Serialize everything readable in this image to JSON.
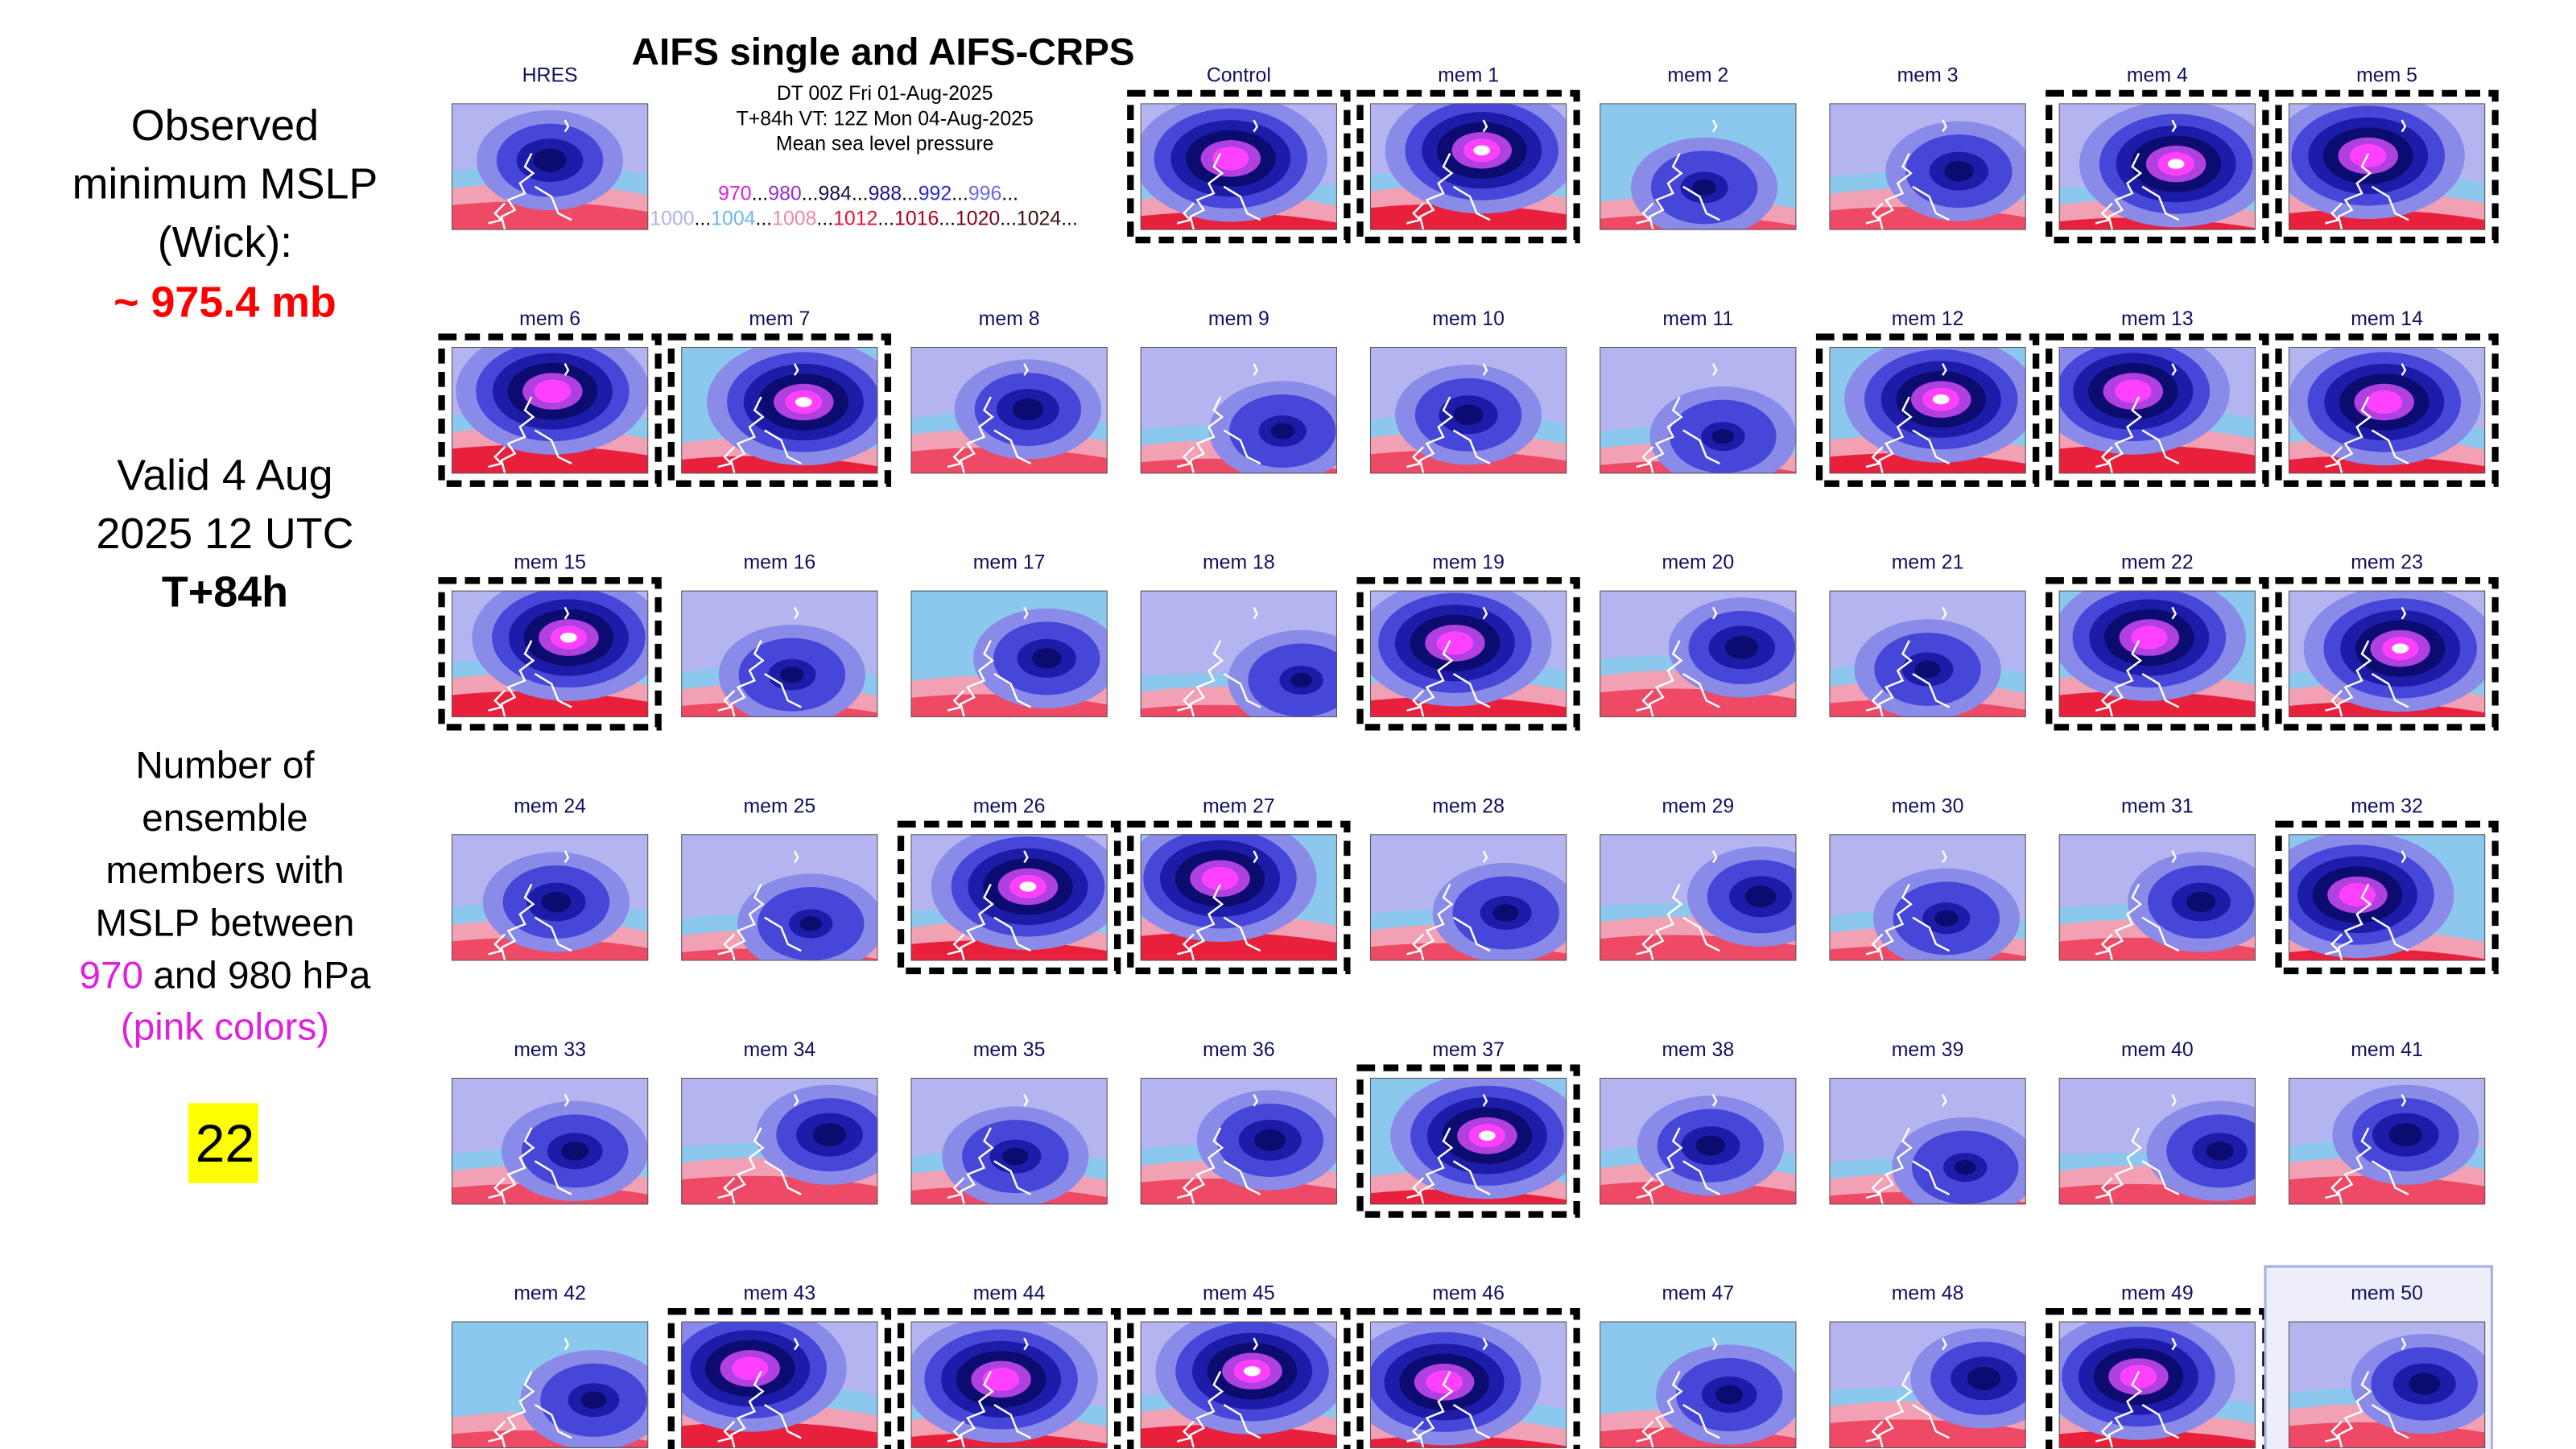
{
  "sidebar": {
    "observed_lines": [
      "Observed",
      "minimum MSLP",
      "(Wick):"
    ],
    "observed_value": "~ 975.4 mb",
    "valid_lines": [
      "Valid 4 Aug",
      "2025 12 UTC"
    ],
    "lead_time": "T+84h",
    "count_lines": [
      "Number of",
      "ensemble",
      "members with",
      "MSLP between"
    ],
    "range_low": "970",
    "range_rest": "and 980 hPa",
    "range_note": "(pink colors)",
    "count": "22"
  },
  "header": {
    "title": "AIFS single and AIFS-CRPS",
    "subtitle_lines": [
      "DT 00Z Fri 01-Aug-2025",
      "T+84h VT: 12Z Mon 04-Aug-2025",
      "Mean sea level pressure"
    ],
    "legend_separator": "...",
    "legend_rows": [
      [
        {
          "value": 970,
          "color": "#e020e0"
        },
        {
          "value": 980,
          "color": "#9a2ad0"
        },
        {
          "value": 984,
          "color": "#101050"
        },
        {
          "value": 988,
          "color": "#16168a"
        },
        {
          "value": 992,
          "color": "#2a2ad0"
        },
        {
          "value": 996,
          "color": "#6a6ae0"
        }
      ],
      [
        {
          "value": 1000,
          "color": "#b0b0f0"
        },
        {
          "value": 1004,
          "color": "#6ab8e8"
        },
        {
          "value": 1008,
          "color": "#f08aa0"
        },
        {
          "value": 1012,
          "color": "#e81030"
        },
        {
          "value": 1016,
          "color": "#b00020"
        },
        {
          "value": 1020,
          "color": "#800018"
        },
        {
          "value": 1024,
          "color": "#401010"
        }
      ]
    ]
  },
  "panels": [
    {
      "label": "HRES",
      "highlighted": false
    },
    {
      "label": "Control",
      "highlighted": true
    },
    {
      "label": "mem 1",
      "highlighted": true
    },
    {
      "label": "mem 2",
      "highlighted": false
    },
    {
      "label": "mem 3",
      "highlighted": false
    },
    {
      "label": "mem 4",
      "highlighted": true
    },
    {
      "label": "mem 5",
      "highlighted": true
    },
    {
      "label": "mem 6",
      "highlighted": true
    },
    {
      "label": "mem 7",
      "highlighted": true
    },
    {
      "label": "mem 8",
      "highlighted": false
    },
    {
      "label": "mem 9",
      "highlighted": false
    },
    {
      "label": "mem 10",
      "highlighted": false
    },
    {
      "label": "mem 11",
      "highlighted": false
    },
    {
      "label": "mem 12",
      "highlighted": true
    },
    {
      "label": "mem 13",
      "highlighted": true
    },
    {
      "label": "mem 14",
      "highlighted": true
    },
    {
      "label": "mem 15",
      "highlighted": true
    },
    {
      "label": "mem 16",
      "highlighted": false
    },
    {
      "label": "mem 17",
      "highlighted": false
    },
    {
      "label": "mem 18",
      "highlighted": false
    },
    {
      "label": "mem 19",
      "highlighted": true
    },
    {
      "label": "mem 20",
      "highlighted": false
    },
    {
      "label": "mem 21",
      "highlighted": false
    },
    {
      "label": "mem 22",
      "highlighted": true
    },
    {
      "label": "mem 23",
      "highlighted": true
    },
    {
      "label": "mem 24",
      "highlighted": false
    },
    {
      "label": "mem 25",
      "highlighted": false
    },
    {
      "label": "mem 26",
      "highlighted": true
    },
    {
      "label": "mem 27",
      "highlighted": true
    },
    {
      "label": "mem 28",
      "highlighted": false
    },
    {
      "label": "mem 29",
      "highlighted": false
    },
    {
      "label": "mem 30",
      "highlighted": false
    },
    {
      "label": "mem 31",
      "highlighted": false
    },
    {
      "label": "mem 32",
      "highlighted": true
    },
    {
      "label": "mem 33",
      "highlighted": false
    },
    {
      "label": "mem 34",
      "highlighted": false
    },
    {
      "label": "mem 35",
      "highlighted": false
    },
    {
      "label": "mem 36",
      "highlighted": false
    },
    {
      "label": "mem 37",
      "highlighted": true
    },
    {
      "label": "mem 38",
      "highlighted": false
    },
    {
      "label": "mem 39",
      "highlighted": false
    },
    {
      "label": "mem 40",
      "highlighted": false
    },
    {
      "label": "mem 41",
      "highlighted": false
    },
    {
      "label": "mem 42",
      "highlighted": false
    },
    {
      "label": "mem 43",
      "highlighted": true
    },
    {
      "label": "mem 44",
      "highlighted": true
    },
    {
      "label": "mem 45",
      "highlighted": true
    },
    {
      "label": "mem 46",
      "highlighted": true
    },
    {
      "label": "mem 47",
      "highlighted": false
    },
    {
      "label": "mem 48",
      "highlighted": false
    },
    {
      "label": "mem 49",
      "highlighted": true
    },
    {
      "label": "mem 50",
      "highlighted": false,
      "selected": true
    }
  ]
}
